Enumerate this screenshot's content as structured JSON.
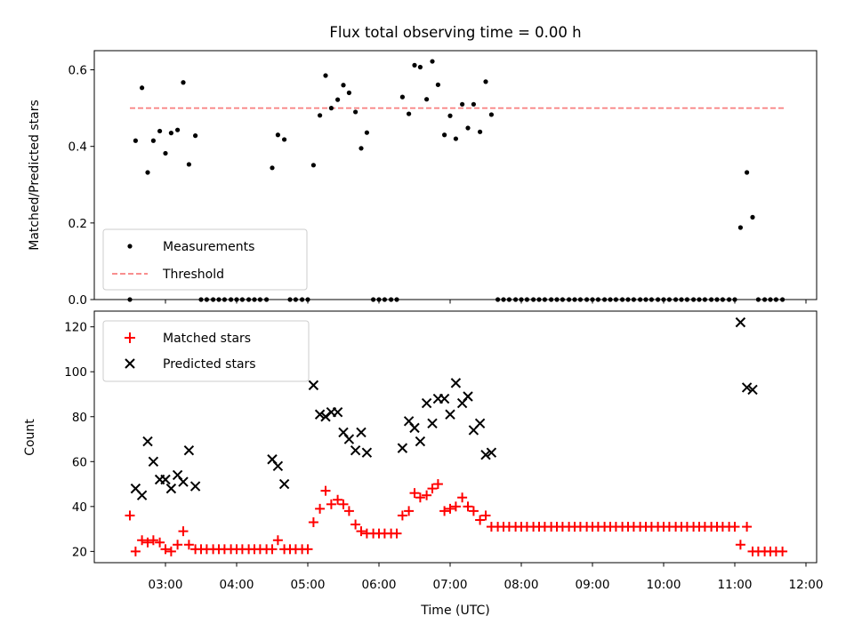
{
  "chart_data": [
    {
      "type": "scatter",
      "title": "Flux total observing time = 0.00 h",
      "xlabel": "",
      "ylabel": "Matched/Predicted stars",
      "xlim": [
        2.0,
        12.15
      ],
      "ylim": [
        0.0,
        0.65
      ],
      "yticks": [
        0.0,
        0.2,
        0.4,
        0.6
      ],
      "ytick_labels": [
        "0.0",
        "0.2",
        "0.4",
        "0.6"
      ],
      "legend_position": "lower-left",
      "grid": false,
      "series": [
        {
          "name": "Measurements",
          "kind": "scatter",
          "marker": "dot",
          "color": "#000000",
          "x": [
            2.5,
            2.58,
            2.67,
            2.75,
            2.83,
            2.92,
            3.0,
            3.08,
            3.17,
            3.25,
            3.33,
            3.42,
            3.5,
            3.58,
            3.67,
            3.75,
            3.83,
            3.92,
            4.0,
            4.08,
            4.17,
            4.25,
            4.33,
            4.42,
            4.5,
            4.58,
            4.67,
            4.75,
            4.83,
            4.92,
            5.0,
            5.08,
            5.17,
            5.25,
            5.33,
            5.42,
            5.5,
            5.58,
            5.67,
            5.75,
            5.83,
            5.92,
            6.0,
            6.08,
            6.17,
            6.25,
            6.33,
            6.42,
            6.5,
            6.58,
            6.67,
            6.75,
            6.83,
            6.92,
            7.0,
            7.08,
            7.17,
            7.25,
            7.33,
            7.42,
            7.5,
            7.58,
            7.67,
            7.75,
            7.83,
            7.92,
            8.0,
            8.08,
            8.17,
            8.25,
            8.33,
            8.42,
            8.5,
            8.58,
            8.67,
            8.75,
            8.83,
            8.92,
            9.0,
            9.08,
            9.17,
            9.25,
            9.33,
            9.42,
            9.5,
            9.58,
            9.67,
            9.75,
            9.83,
            9.92,
            10.0,
            10.08,
            10.17,
            10.25,
            10.33,
            10.42,
            10.5,
            10.58,
            10.67,
            10.75,
            10.83,
            10.92,
            11.0,
            11.08,
            11.17,
            11.25,
            11.33,
            11.42,
            11.5,
            11.58,
            11.67
          ],
          "y": [
            0.0,
            0.415,
            0.553,
            0.332,
            0.415,
            0.44,
            0.382,
            0.435,
            0.443,
            0.567,
            0.353,
            0.428,
            0.0,
            0.0,
            0.0,
            0.0,
            0.0,
            0.0,
            0.0,
            0.0,
            0.0,
            0.0,
            0.0,
            0.0,
            0.344,
            0.43,
            0.418,
            0.0,
            0.0,
            0.0,
            0.0,
            0.351,
            0.481,
            0.585,
            0.5,
            0.522,
            0.56,
            0.54,
            0.49,
            0.395,
            0.436,
            0.0,
            0.0,
            0.0,
            0.0,
            0.0,
            0.529,
            0.485,
            0.612,
            0.607,
            0.523,
            0.622,
            0.561,
            0.43,
            0.48,
            0.42,
            0.51,
            0.448,
            0.51,
            0.438,
            0.569,
            0.483,
            0.0,
            0.0,
            0.0,
            0.0,
            0.0,
            0.0,
            0.0,
            0.0,
            0.0,
            0.0,
            0.0,
            0.0,
            0.0,
            0.0,
            0.0,
            0.0,
            0.0,
            0.0,
            0.0,
            0.0,
            0.0,
            0.0,
            0.0,
            0.0,
            0.0,
            0.0,
            0.0,
            0.0,
            0.0,
            0.0,
            0.0,
            0.0,
            0.0,
            0.0,
            0.0,
            0.0,
            0.0,
            0.0,
            0.0,
            0.0,
            0.0,
            0.188,
            0.332,
            0.215,
            0.0,
            0.0,
            0.0,
            0.0,
            0.0
          ]
        },
        {
          "name": "Threshold",
          "kind": "line",
          "style": "dashed",
          "color": "#f87f7f",
          "x": [
            2.5,
            11.7
          ],
          "y": [
            0.5,
            0.5
          ]
        }
      ]
    },
    {
      "type": "scatter",
      "title": "",
      "xlabel": "Time (UTC)",
      "ylabel": "Count",
      "xlim": [
        2.0,
        12.15
      ],
      "ylim": [
        15,
        127
      ],
      "yticks": [
        20,
        40,
        60,
        80,
        100,
        120
      ],
      "ytick_labels": [
        "20",
        "40",
        "60",
        "80",
        "100",
        "120"
      ],
      "xticks": [
        3,
        4,
        5,
        6,
        7,
        8,
        9,
        10,
        11,
        12
      ],
      "xtick_labels": [
        "03:00",
        "04:00",
        "05:00",
        "06:00",
        "07:00",
        "08:00",
        "09:00",
        "10:00",
        "11:00",
        "12:00"
      ],
      "legend_position": "top-left",
      "grid": false,
      "series": [
        {
          "name": "Matched stars",
          "marker": "plus",
          "color": "#ff0000",
          "x": [
            2.5,
            2.58,
            2.67,
            2.75,
            2.83,
            2.92,
            3.0,
            3.08,
            3.17,
            3.25,
            3.33,
            3.42,
            3.5,
            3.58,
            3.67,
            3.75,
            3.83,
            3.92,
            4.0,
            4.08,
            4.17,
            4.25,
            4.33,
            4.42,
            4.5,
            4.58,
            4.67,
            4.75,
            4.83,
            4.92,
            5.0,
            5.08,
            5.17,
            5.25,
            5.33,
            5.42,
            5.5,
            5.58,
            5.67,
            5.75,
            5.83,
            5.92,
            6.0,
            6.08,
            6.17,
            6.25,
            6.33,
            6.42,
            6.5,
            6.58,
            6.67,
            6.75,
            6.83,
            6.92,
            7.0,
            7.08,
            7.17,
            7.25,
            7.33,
            7.42,
            7.5,
            7.58,
            7.67,
            7.75,
            7.83,
            7.92,
            8.0,
            8.08,
            8.17,
            8.25,
            8.33,
            8.42,
            8.5,
            8.58,
            8.67,
            8.75,
            8.83,
            8.92,
            9.0,
            9.08,
            9.17,
            9.25,
            9.33,
            9.42,
            9.5,
            9.58,
            9.67,
            9.75,
            9.83,
            9.92,
            10.0,
            10.08,
            10.17,
            10.25,
            10.33,
            10.42,
            10.5,
            10.58,
            10.67,
            10.75,
            10.83,
            10.92,
            11.0,
            11.08,
            11.17,
            11.25,
            11.33,
            11.42,
            11.5,
            11.58,
            11.67
          ],
          "y": [
            36,
            20,
            25,
            24,
            25,
            24,
            21,
            20,
            23,
            29,
            23,
            21,
            21,
            21,
            21,
            21,
            21,
            21,
            21,
            21,
            21,
            21,
            21,
            21,
            21,
            25,
            21,
            21,
            21,
            21,
            21,
            33,
            39,
            47,
            41,
            43,
            41,
            38,
            32,
            29,
            28,
            28,
            28,
            28,
            28,
            28,
            36,
            38,
            46,
            44,
            45,
            48,
            50,
            38,
            39,
            40,
            44,
            40,
            38,
            34,
            36,
            31,
            31,
            31,
            31,
            31,
            31,
            31,
            31,
            31,
            31,
            31,
            31,
            31,
            31,
            31,
            31,
            31,
            31,
            31,
            31,
            31,
            31,
            31,
            31,
            31,
            31,
            31,
            31,
            31,
            31,
            31,
            31,
            31,
            31,
            31,
            31,
            31,
            31,
            31,
            31,
            31,
            31,
            23,
            31,
            20,
            20,
            20,
            20,
            20,
            20
          ]
        },
        {
          "name": "Predicted stars",
          "marker": "x",
          "color": "#000000",
          "x": [
            2.58,
            2.67,
            2.75,
            2.83,
            2.92,
            3.0,
            3.08,
            3.17,
            3.25,
            3.33,
            3.42,
            4.5,
            4.58,
            4.67,
            5.08,
            5.17,
            5.25,
            5.33,
            5.42,
            5.5,
            5.58,
            5.67,
            5.75,
            5.83,
            6.33,
            6.42,
            6.5,
            6.58,
            6.67,
            6.75,
            6.83,
            6.92,
            7.0,
            7.08,
            7.17,
            7.25,
            7.33,
            7.42,
            7.5,
            7.58,
            11.08,
            11.17,
            11.25
          ],
          "y": [
            48,
            45,
            69,
            60,
            52,
            52,
            48,
            54,
            51,
            65,
            49,
            61,
            58,
            50,
            94,
            81,
            80,
            82,
            82,
            73,
            70,
            65,
            73,
            64,
            66,
            78,
            75,
            69,
            86,
            77,
            88,
            88,
            81,
            95,
            86,
            89,
            74,
            77,
            63,
            64,
            122,
            93,
            92
          ]
        }
      ]
    }
  ]
}
